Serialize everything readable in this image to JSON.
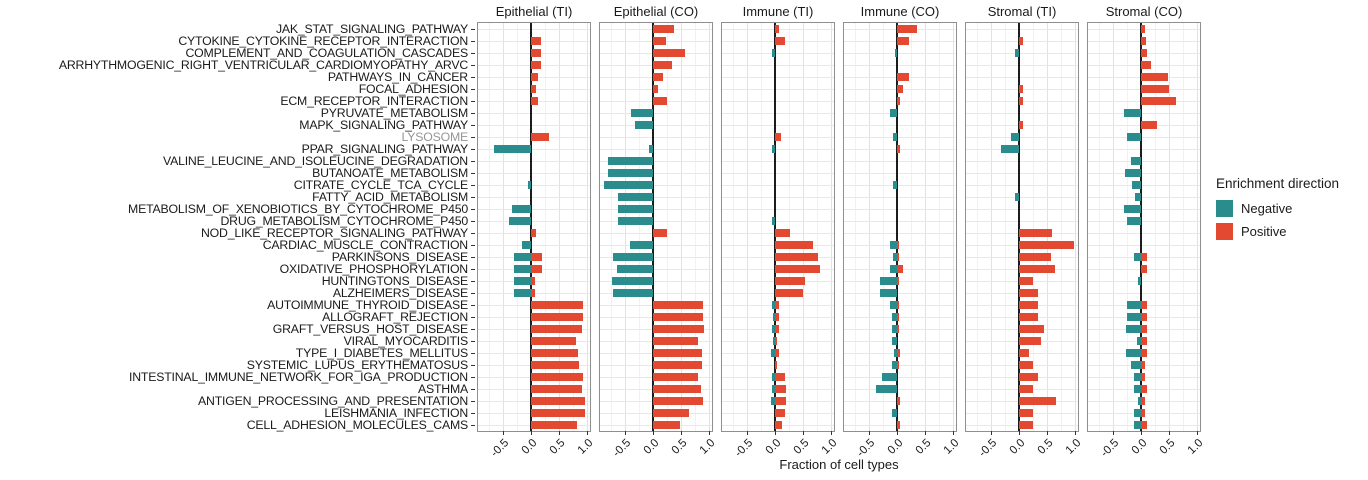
{
  "chart_data": {
    "type": "bar",
    "orientation": "horizontal",
    "xlabel": "Fraction of cell types",
    "x_ticks": [
      -0.5,
      0.0,
      0.5,
      1.0
    ],
    "x_tick_labels": [
      "-0.5",
      "0.0",
      "0.5",
      "1.0"
    ],
    "x_minor_ticks": [
      -0.75,
      -0.25,
      0.25,
      0.75
    ],
    "xlim": [
      -0.95,
      1.05
    ],
    "grid": true,
    "legend": {
      "title": "Enrichment direction",
      "position": "right",
      "entries": [
        {
          "label": "Negative",
          "color": "#2A8C8D"
        },
        {
          "label": "Positive",
          "color": "#E24930"
        }
      ]
    },
    "muted_categories": [
      "LYSOSOME"
    ],
    "muted_label_color": "#969696",
    "categories": [
      "JAK_STAT_SIGNALING_PATHWAY",
      "CYTOKINE_CYTOKINE_RECEPTOR_INTERACTION",
      "COMPLEMENT_AND_COAGULATION_CASCADES",
      "ARRHYTHMOGENIC_RIGHT_VENTRICULAR_CARDIOMYOPATHY_ARVC",
      "PATHWAYS_IN_CANCER",
      "FOCAL_ADHESION",
      "ECM_RECEPTOR_INTERACTION",
      "PYRUVATE_METABOLISM",
      "MAPK_SIGNALING_PATHWAY",
      "LYSOSOME",
      "PPAR_SIGNALING_PATHWAY",
      "VALINE_LEUCINE_AND_ISOLEUCINE_DEGRADATION",
      "BUTANOATE_METABOLISM",
      "CITRATE_CYCLE_TCA_CYCLE",
      "FATTY_ACID_METABOLISM",
      "METABOLISM_OF_XENOBIOTICS_BY_CYTOCHROME_P450",
      "DRUG_METABOLISM_CYTOCHROME_P450",
      "NOD_LIKE_RECEPTOR_SIGNALING_PATHWAY",
      "CARDIAC_MUSCLE_CONTRACTION",
      "PARKINSONS_DISEASE",
      "OXIDATIVE_PHOSPHORYLATION",
      "HUNTINGTONS_DISEASE",
      "ALZHEIMERS_DISEASE",
      "AUTOIMMUNE_THYROID_DISEASE",
      "ALLOGRAFT_REJECTION",
      "GRAFT_VERSUS_HOST_DISEASE",
      "VIRAL_MYOCARDITIS",
      "TYPE_I_DIABETES_MELLITUS",
      "SYSTEMIC_LUPUS_ERYTHEMATOSUS",
      "INTESTINAL_IMMUNE_NETWORK_FOR_IGA_PRODUCTION",
      "ASTHMA",
      "ANTIGEN_PROCESSING_AND_PRESENTATION",
      "LEISHMANIA_INFECTION",
      "CELL_ADHESION_MOLECULES_CAMS"
    ],
    "panels": [
      {
        "label": "Epithelial (TI)",
        "negative": [
          0,
          0,
          0,
          0,
          0,
          0,
          0,
          0,
          0,
          0,
          -0.67,
          0,
          0,
          -0.05,
          0,
          -0.35,
          -0.4,
          0,
          -0.16,
          -0.3,
          -0.3,
          -0.3,
          -0.3,
          0,
          0,
          0,
          0,
          0,
          0,
          0,
          0,
          0,
          0,
          0
        ],
        "positive": [
          0,
          0.17,
          0.17,
          0.17,
          0.13,
          0.08,
          0.12,
          0,
          0,
          0.31,
          0,
          0,
          0,
          0,
          0,
          0,
          0,
          0.08,
          0,
          0.2,
          0.2,
          0.07,
          0.06,
          0.92,
          0.92,
          0.9,
          0.8,
          0.83,
          0.85,
          0.92,
          0.9,
          0.96,
          0.96,
          0.82
        ]
      },
      {
        "label": "Epithelial (CO)",
        "negative": [
          0,
          0,
          0,
          0,
          0,
          0,
          0,
          -0.4,
          -0.32,
          0,
          -0.08,
          -0.8,
          -0.8,
          -0.88,
          -0.63,
          -0.63,
          -0.63,
          0,
          -0.42,
          -0.71,
          -0.64,
          -0.74,
          -0.71,
          0,
          0,
          0,
          0,
          0,
          0,
          0,
          0,
          0,
          0,
          0
        ],
        "positive": [
          0.37,
          0.22,
          0.56,
          0.33,
          0.17,
          0.08,
          0.24,
          0,
          0,
          0,
          0,
          0,
          0,
          0,
          0,
          0,
          0,
          0.24,
          0,
          0,
          0,
          0,
          0,
          0.89,
          0.89,
          0.9,
          0.8,
          0.88,
          0.88,
          0.8,
          0.86,
          0.89,
          0.64,
          0.48
        ]
      },
      {
        "label": "Immune (TI)",
        "negative": [
          0,
          0,
          -0.05,
          0,
          0,
          0,
          0,
          0,
          0,
          0,
          -0.06,
          0,
          0,
          0,
          0,
          0,
          -0.05,
          0,
          0,
          0,
          0,
          0,
          0,
          -0.06,
          -0.04,
          -0.06,
          -0.04,
          -0.07,
          0,
          -0.06,
          -0.06,
          -0.07,
          0,
          0
        ],
        "positive": [
          0.07,
          0.17,
          0,
          0,
          0,
          0,
          0,
          0,
          0,
          0.11,
          0,
          0,
          0,
          0,
          0,
          0,
          0,
          0.26,
          0.67,
          0.76,
          0.8,
          0.54,
          0.5,
          0.07,
          0.07,
          0.07,
          0.04,
          0.07,
          0.04,
          0.17,
          0.2,
          0.2,
          0.17,
          0.12
        ]
      },
      {
        "label": "Immune (CO)",
        "negative": [
          0,
          0,
          -0.04,
          0,
          0,
          0,
          0,
          -0.13,
          0,
          -0.08,
          0,
          0,
          0,
          -0.08,
          0,
          0,
          0,
          0,
          -0.12,
          -0.07,
          -0.12,
          -0.3,
          -0.3,
          -0.13,
          -0.1,
          -0.1,
          -0.1,
          -0.06,
          -0.1,
          -0.28,
          -0.38,
          0,
          -0.1,
          0
        ],
        "positive": [
          0.35,
          0.21,
          0,
          0,
          0.21,
          0.1,
          0.05,
          0,
          0,
          0,
          0.05,
          0,
          0,
          0,
          0,
          0,
          0,
          0,
          0.04,
          0.04,
          0.1,
          0.03,
          0,
          0.04,
          0.04,
          0.04,
          0,
          0.05,
          0.04,
          0,
          0,
          0.05,
          0,
          0.05
        ]
      },
      {
        "label": "Stromal (TI)",
        "negative": [
          0,
          0,
          -0.07,
          0,
          0,
          0,
          0,
          0,
          0,
          -0.14,
          -0.33,
          0,
          0,
          0,
          -0.08,
          0,
          0,
          0,
          0,
          0,
          0,
          0,
          0,
          0,
          0,
          0,
          0,
          0,
          0,
          0,
          0,
          0,
          0,
          0
        ],
        "positive": [
          0,
          0.07,
          0,
          0,
          0,
          0.07,
          0.07,
          0,
          0.07,
          0,
          0,
          0,
          0,
          0,
          0,
          0,
          0,
          0.58,
          0.98,
          0.57,
          0.64,
          0.24,
          0.33,
          0.33,
          0.33,
          0.45,
          0.39,
          0.17,
          0.24,
          0.33,
          0.24,
          0.65,
          0.24,
          0.24
        ]
      },
      {
        "label": "Stromal (CO)",
        "negative": [
          0,
          0,
          0,
          0,
          0,
          0,
          0,
          -0.3,
          0,
          -0.25,
          0,
          -0.18,
          -0.29,
          -0.17,
          -0.11,
          -0.3,
          -0.25,
          0,
          0,
          -0.12,
          0,
          -0.06,
          0,
          -0.25,
          -0.25,
          -0.27,
          -0.08,
          -0.27,
          -0.18,
          -0.12,
          -0.12,
          -0.06,
          -0.12,
          -0.12
        ],
        "positive": [
          0.07,
          0.08,
          0.1,
          0.17,
          0.48,
          0.49,
          0.62,
          0,
          0.29,
          0,
          0,
          0,
          0,
          0,
          0,
          0,
          0,
          0,
          0,
          0.11,
          0.11,
          0,
          0,
          0.11,
          0.11,
          0.11,
          0.11,
          0.11,
          0.06,
          0.06,
          0.11,
          0.06,
          0.06,
          0.11
        ]
      }
    ]
  }
}
